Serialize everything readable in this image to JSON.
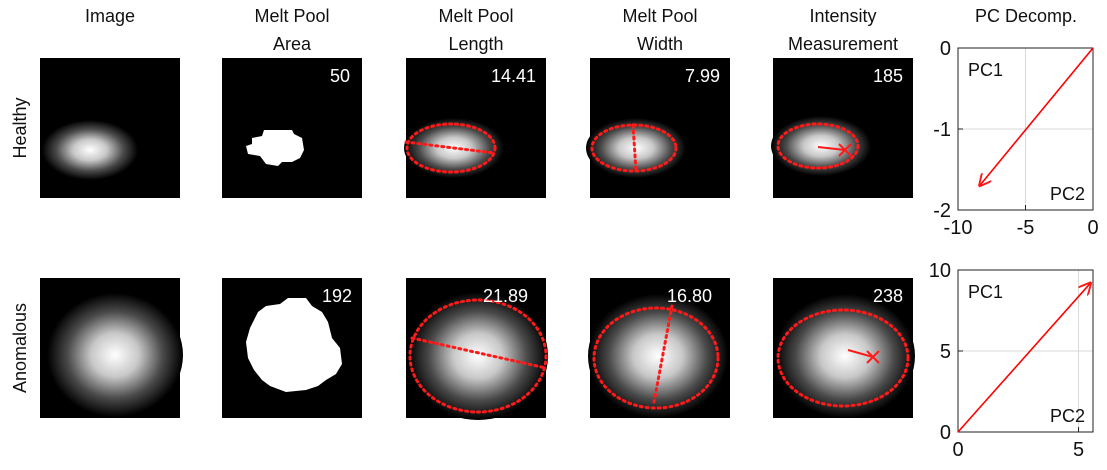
{
  "headers": [
    [
      "Image"
    ],
    [
      "Melt Pool",
      "Area"
    ],
    [
      "Melt Pool",
      "Length"
    ],
    [
      "Melt Pool",
      "Width"
    ],
    [
      "Intensity",
      "Measurement"
    ],
    [
      "PC Decomp."
    ]
  ],
  "rows": [
    {
      "label": "Healthy",
      "values": [
        "50",
        "14.41",
        "7.99",
        "185"
      ]
    },
    {
      "label": "Anomalous",
      "values": [
        "192",
        "21.89",
        "16.80",
        "238"
      ]
    }
  ],
  "chart_data": [
    {
      "type": "line",
      "x": [
        0,
        -8.4
      ],
      "values": [
        0,
        -1.7
      ],
      "color": "#ff0000",
      "xlim": [
        -10,
        0
      ],
      "ylim": [
        -2,
        0
      ],
      "xticks": [
        -10,
        -5,
        0
      ],
      "yticks": [
        -2,
        -1,
        0
      ],
      "grid": true,
      "annotations": [
        "PC1",
        "PC2"
      ]
    },
    {
      "type": "line",
      "x": [
        0,
        5.5
      ],
      "values": [
        0,
        9.2
      ],
      "color": "#ff0000",
      "xlim": [
        0,
        5.6
      ],
      "ylim": [
        0,
        10
      ],
      "xticks": [
        0,
        5
      ],
      "yticks": [
        0,
        5,
        10
      ],
      "grid": true,
      "annotations": [
        "PC1",
        "PC2"
      ]
    }
  ]
}
